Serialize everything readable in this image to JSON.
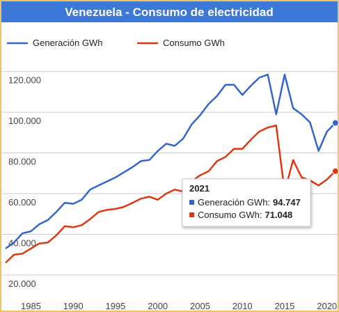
{
  "chart_data": {
    "type": "line",
    "title": "Venezuela - Consumo de electricidad",
    "x": [
      1982,
      1983,
      1984,
      1985,
      1986,
      1987,
      1988,
      1989,
      1990,
      1991,
      1992,
      1993,
      1994,
      1995,
      1996,
      1997,
      1998,
      1999,
      2000,
      2001,
      2002,
      2003,
      2004,
      2005,
      2006,
      2007,
      2008,
      2009,
      2010,
      2011,
      2012,
      2013,
      2014,
      2015,
      2016,
      2017,
      2018,
      2019,
      2020,
      2021
    ],
    "series": [
      {
        "name": "Generación GWh",
        "color": "#3366cc",
        "values": [
          33000,
          36000,
          40500,
          41500,
          45000,
          47000,
          51000,
          55500,
          55000,
          57000,
          62000,
          64000,
          66000,
          68000,
          70500,
          73000,
          76000,
          76500,
          81000,
          84500,
          83500,
          87000,
          94000,
          98500,
          104000,
          108000,
          113500,
          113500,
          108500,
          113000,
          117000,
          118500,
          99000,
          118500,
          102000,
          99000,
          95000,
          81000,
          90500,
          94747
        ]
      },
      {
        "name": "Consumo GWh",
        "color": "#dc3912",
        "values": [
          26000,
          30000,
          30500,
          33000,
          35500,
          36000,
          39500,
          44000,
          43500,
          44500,
          47500,
          51000,
          52000,
          52500,
          53500,
          55500,
          57500,
          58500,
          57000,
          60000,
          62000,
          61000,
          66000,
          69000,
          71000,
          76000,
          78000,
          82000,
          82000,
          86500,
          90500,
          92500,
          93500,
          61000,
          76500,
          68000,
          66500,
          64000,
          67000,
          71048
        ]
      }
    ],
    "xlim": [
      1982,
      2022
    ],
    "xticks": [
      1985,
      1990,
      1995,
      2000,
      2005,
      2010,
      2015,
      2020
    ],
    "ylim": [
      8000,
      124000
    ],
    "yticks": [
      {
        "value": 20000,
        "label": "20.000"
      },
      {
        "value": 40000,
        "label": "40.000"
      },
      {
        "value": 60000,
        "label": "60.000"
      },
      {
        "value": 80000,
        "label": "80.000"
      },
      {
        "value": 100000,
        "label": "100.000"
      },
      {
        "value": 120000,
        "label": "120.000"
      }
    ],
    "grid": true,
    "legend": "top",
    "tooltip": {
      "title": "2021",
      "rows": [
        {
          "label": "Generación GWh:",
          "value": "94.747"
        },
        {
          "label": "Consumo GWh:",
          "value": "71.048"
        }
      ]
    }
  }
}
